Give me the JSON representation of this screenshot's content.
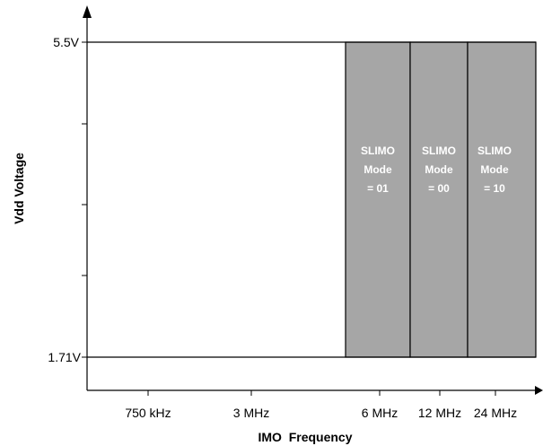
{
  "y_axis": {
    "title": "Vdd Voltage",
    "top_label": "5.5V",
    "bottom_label": "1.71V"
  },
  "x_axis": {
    "title": "IMO  Frequency",
    "tick_labels": [
      "750 kHz",
      "3 MHz",
      "6 MHz",
      "12 MHz",
      "24 MHz"
    ]
  },
  "regions": [
    {
      "line1": "SLIMO",
      "line2": "Mode",
      "line3": "= 01"
    },
    {
      "line1": "SLIMO",
      "line2": "Mode",
      "line3": "= 00"
    },
    {
      "line1": "SLIMO",
      "line2": "Mode",
      "line3": "= 10"
    }
  ],
  "colors": {
    "region_fill": "#a6a6a6",
    "region_text": "#ffffff",
    "lines": "#000000"
  }
}
